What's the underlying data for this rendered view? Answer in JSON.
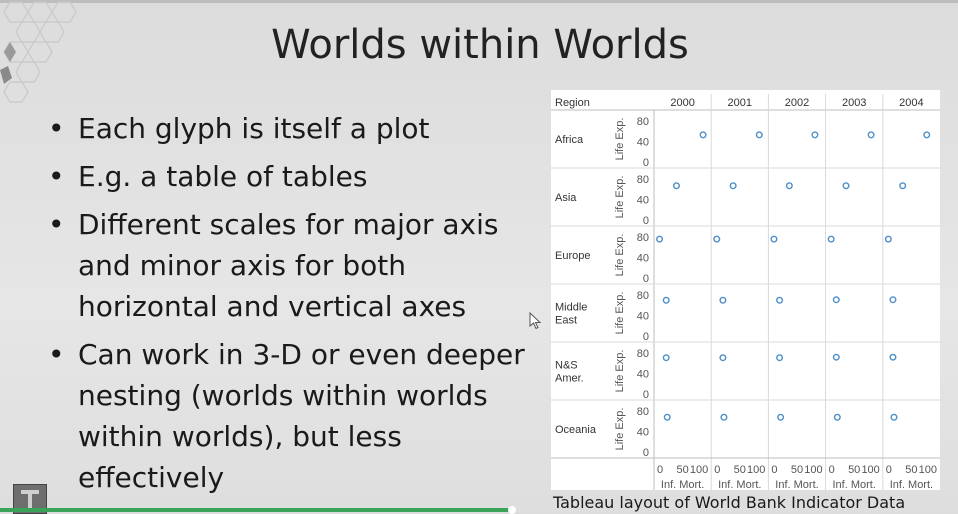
{
  "slide": {
    "title": "Worlds within Worlds",
    "bullets": [
      "Each glyph is itself a plot",
      "E.g. a table of tables",
      "Different scales for major axis and minor axis for both horizontal and vertical axes",
      "Can work in 3-D or even deeper nesting (worlds within worlds within worlds), but less effectively"
    ],
    "bullet_lines": [
      [
        "Each glyph is itself a plot"
      ],
      [
        "E.g. a table of tables"
      ],
      [
        "Different scales for major axis",
        "and minor axis for both",
        "horizontal and vertical axes"
      ],
      [
        "Can work in 3-D or even deeper",
        "nesting (worlds within worlds",
        "within worlds), but less",
        "effectively"
      ]
    ],
    "bullet_symbol": "•",
    "caption": "Tableau layout of World Bank Indicator Data"
  },
  "chart_data": {
    "type": "scatter",
    "row_header": "Region",
    "row_header_lines": [
      "Region"
    ],
    "rows": [
      "Africa",
      "Asia",
      "Europe",
      "Middle East",
      "N&S Amer.",
      "Oceania"
    ],
    "row_label_lines": [
      [
        "Africa"
      ],
      [
        "Asia"
      ],
      [
        "Europe"
      ],
      [
        "Middle",
        "East"
      ],
      [
        "N&S",
        "Amer."
      ],
      [
        "Oceania"
      ]
    ],
    "columns": [
      "2000",
      "2001",
      "2002",
      "2003",
      "2004"
    ],
    "ylabel": "Life Exp.",
    "xlabel": "Inf. Mort.",
    "y_ticks": [
      "80",
      "40",
      "0"
    ],
    "x_ticks": [
      "0",
      "50",
      "100"
    ],
    "ylim": [
      0,
      90
    ],
    "xlim": [
      0,
      100
    ],
    "grid": true,
    "point_color": "#4c8fc9",
    "points": [
      {
        "row": "Africa",
        "column": "2000",
        "x": 90,
        "y": 53
      },
      {
        "row": "Africa",
        "column": "2001",
        "x": 88,
        "y": 53
      },
      {
        "row": "Africa",
        "column": "2002",
        "x": 85,
        "y": 53
      },
      {
        "row": "Africa",
        "column": "2003",
        "x": 83,
        "y": 53
      },
      {
        "row": "Africa",
        "column": "2004",
        "x": 80,
        "y": 53
      },
      {
        "row": "Asia",
        "column": "2000",
        "x": 38,
        "y": 67
      },
      {
        "row": "Asia",
        "column": "2001",
        "x": 37,
        "y": 67
      },
      {
        "row": "Asia",
        "column": "2002",
        "x": 35,
        "y": 67
      },
      {
        "row": "Asia",
        "column": "2003",
        "x": 34,
        "y": 67
      },
      {
        "row": "Asia",
        "column": "2004",
        "x": 33,
        "y": 67
      },
      {
        "row": "Europe",
        "column": "2000",
        "x": 5,
        "y": 76
      },
      {
        "row": "Europe",
        "column": "2001",
        "x": 5,
        "y": 76
      },
      {
        "row": "Europe",
        "column": "2002",
        "x": 5,
        "y": 76
      },
      {
        "row": "Europe",
        "column": "2003",
        "x": 5,
        "y": 76
      },
      {
        "row": "Europe",
        "column": "2004",
        "x": 5,
        "y": 76
      },
      {
        "row": "Middle East",
        "column": "2000",
        "x": 18,
        "y": 70
      },
      {
        "row": "Middle East",
        "column": "2001",
        "x": 17,
        "y": 70
      },
      {
        "row": "Middle East",
        "column": "2002",
        "x": 16,
        "y": 70
      },
      {
        "row": "Middle East",
        "column": "2003",
        "x": 15,
        "y": 71
      },
      {
        "row": "Middle East",
        "column": "2004",
        "x": 14,
        "y": 71
      },
      {
        "row": "N&S Amer.",
        "column": "2000",
        "x": 18,
        "y": 71
      },
      {
        "row": "N&S Amer.",
        "column": "2001",
        "x": 17,
        "y": 71
      },
      {
        "row": "N&S Amer.",
        "column": "2002",
        "x": 16,
        "y": 71
      },
      {
        "row": "N&S Amer.",
        "column": "2003",
        "x": 15,
        "y": 72
      },
      {
        "row": "N&S Amer.",
        "column": "2004",
        "x": 14,
        "y": 72
      },
      {
        "row": "Oceania",
        "column": "2000",
        "x": 20,
        "y": 68
      },
      {
        "row": "Oceania",
        "column": "2001",
        "x": 19,
        "y": 68
      },
      {
        "row": "Oceania",
        "column": "2002",
        "x": 18,
        "y": 68
      },
      {
        "row": "Oceania",
        "column": "2003",
        "x": 17,
        "y": 68
      },
      {
        "row": "Oceania",
        "column": "2004",
        "x": 16,
        "y": 68
      }
    ]
  }
}
